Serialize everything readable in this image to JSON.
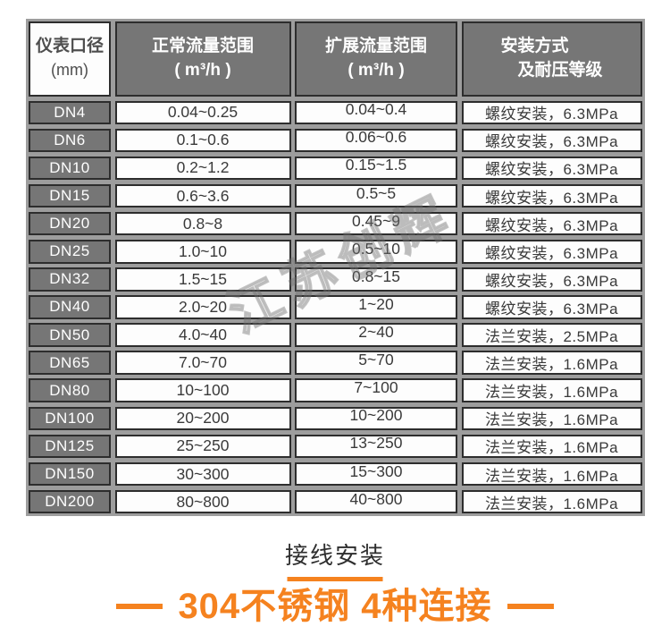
{
  "watermark": {
    "text": "江苏创辉"
  },
  "table": {
    "header": {
      "diameter_line1": "仪表口径",
      "diameter_line2": "(mm)",
      "normal_line1": "正常流量范围",
      "normal_line2": "( m³/h )",
      "extended_line1": "扩展流量范围",
      "extended_line2": "( m³/h )",
      "install_line1": "安装方式",
      "install_line2": "及耐压等级"
    },
    "rows": [
      {
        "dn": "DN4",
        "normal": "0.04~0.25",
        "extended": "0.04~0.4",
        "install": "螺纹安装，6.3MPa"
      },
      {
        "dn": "DN6",
        "normal": "0.1~0.6",
        "extended": "0.06~0.6",
        "install": "螺纹安装，6.3MPa"
      },
      {
        "dn": "DN10",
        "normal": "0.2~1.2",
        "extended": "0.15~1.5",
        "install": "螺纹安装，6.3MPa"
      },
      {
        "dn": "DN15",
        "normal": "0.6~3.6",
        "extended": "0.5~5",
        "install": "螺纹安装，6.3MPa"
      },
      {
        "dn": "DN20",
        "normal": "0.8~8",
        "extended": "0.45~9",
        "install": "螺纹安装，6.3MPa"
      },
      {
        "dn": "DN25",
        "normal": "1.0~10",
        "extended": "0.5~10",
        "install": "螺纹安装，6.3MPa"
      },
      {
        "dn": "DN32",
        "normal": "1.5~15",
        "extended": "0.8~15",
        "install": "螺纹安装，6.3MPa"
      },
      {
        "dn": "DN40",
        "normal": "2.0~20",
        "extended": "1~20",
        "install": "螺纹安装，6.3MPa"
      },
      {
        "dn": "DN50",
        "normal": "4.0~40",
        "extended": "2~40",
        "install": "法兰安装，2.5MPa"
      },
      {
        "dn": "DN65",
        "normal": "7.0~70",
        "extended": "5~70",
        "install": "法兰安装，1.6MPa"
      },
      {
        "dn": "DN80",
        "normal": "10~100",
        "extended": "7~100",
        "install": "法兰安装，1.6MPa"
      },
      {
        "dn": "DN100",
        "normal": "20~200",
        "extended": "10~200",
        "install": "法兰安装，1.6MPa"
      },
      {
        "dn": "DN125",
        "normal": "25~250",
        "extended": "13~250",
        "install": "法兰安装，1.6MPa"
      },
      {
        "dn": "DN150",
        "normal": "30~300",
        "extended": "15~300",
        "install": "法兰安装，1.6MPa"
      },
      {
        "dn": "DN200",
        "normal": "80~800",
        "extended": "40~800",
        "install": "法兰安装，1.6MPa"
      }
    ]
  },
  "footer": {
    "section_title": "接线安装",
    "headline": "304不锈钢 4种连接"
  },
  "colors": {
    "accent_orange": "#f5821f",
    "cell_gray": "#767676",
    "gap_gray": "#9d9d9d",
    "border_dark": "#2d2d2d"
  }
}
